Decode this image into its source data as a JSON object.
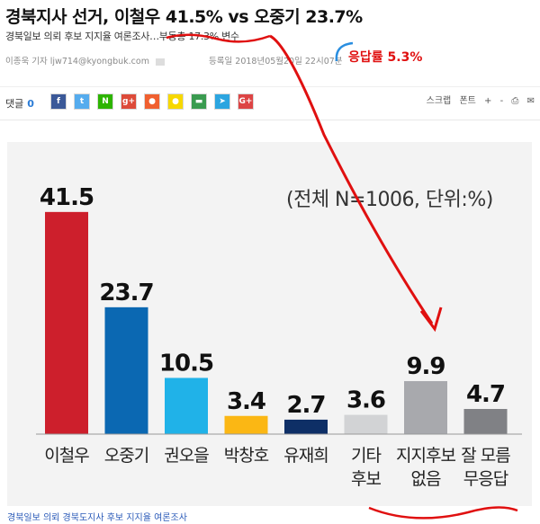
{
  "article": {
    "headline": "경북지사 선거, 이철우 41.5% vs 오중기 23.7%",
    "subhead": "경북일보 의뢰 후보 지지율 여론조사…부동층 17.3% 변수",
    "byline": {
      "reporter": "이종욱 기자",
      "email": "ljw714@kyongbuk.com",
      "date": "등록일 2018년05월20일 22시07분"
    }
  },
  "toolbar": {
    "comment_label": "댓글",
    "comment_count": "0",
    "share_icons": [
      {
        "icon": "facebook-icon",
        "glyph": "f",
        "color": "#3b5998"
      },
      {
        "icon": "twitter-icon",
        "glyph": "t",
        "color": "#55acee"
      },
      {
        "icon": "naver-band-icon",
        "glyph": "N",
        "color": "#2db400"
      },
      {
        "icon": "google-plus-icon",
        "glyph": "g+",
        "color": "#dd4b39"
      },
      {
        "icon": "kakao-story-icon",
        "glyph": "●",
        "color": "#f06030"
      },
      {
        "icon": "kakao-talk-icon",
        "glyph": "●",
        "color": "#f7d800"
      },
      {
        "icon": "band-icon",
        "glyph": "▬",
        "color": "#3a9b50"
      },
      {
        "icon": "telegram-icon",
        "glyph": "➤",
        "color": "#2ca5e0"
      },
      {
        "icon": "google-icon",
        "glyph": "G+",
        "color": "#d44"
      }
    ],
    "tools": [
      "스크랩",
      "폰트",
      "+",
      "-",
      "print-icon",
      "email-icon"
    ]
  },
  "chart_data": {
    "type": "bar",
    "note": "(전체 N=1006, 단위:%)",
    "categories": [
      "이철우",
      "오중기",
      "권오을",
      "박창호",
      "유재희",
      "기타\n후보",
      "지지후보\n없음",
      "잘 모름\n무응답"
    ],
    "values": [
      41.5,
      23.7,
      10.5,
      3.4,
      2.7,
      3.6,
      9.9,
      4.7
    ],
    "value_labels": [
      "41.5",
      "23.7",
      "10.5",
      "3.4",
      "2.7",
      "3.6",
      "9.9",
      "4.7"
    ],
    "colors": [
      "#cd1f2c",
      "#0b68b2",
      "#20b2e8",
      "#fbb714",
      "#0e2f66",
      "#d2d3d5",
      "#a8a9ad",
      "#808185"
    ],
    "ylim": [
      0,
      45
    ]
  },
  "annotation": {
    "label": "응답률 5.3%",
    "color": "#e01010"
  },
  "caption": "경북일보 의뢰 경북도지사 후보 지지율 여론조사"
}
